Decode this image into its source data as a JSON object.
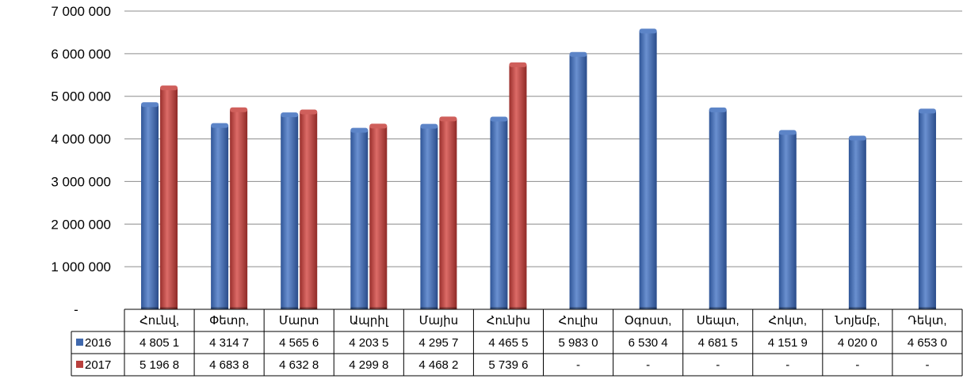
{
  "chart_data": {
    "type": "bar",
    "title": "",
    "xlabel": "",
    "ylabel": "",
    "ylim": [
      0,
      7000000
    ],
    "grid": true,
    "legend_placement": "data-table-left",
    "y_ticks": [
      {
        "value": 0,
        "label": "-"
      },
      {
        "value": 1000000,
        "label": "1 000 000"
      },
      {
        "value": 2000000,
        "label": "2 000 000"
      },
      {
        "value": 3000000,
        "label": "3 000 000"
      },
      {
        "value": 4000000,
        "label": "4 000 000"
      },
      {
        "value": 5000000,
        "label": "5 000 000"
      },
      {
        "value": 6000000,
        "label": "6 000 000"
      },
      {
        "value": 7000000,
        "label": "7 000 000"
      }
    ],
    "categories": [
      "Հունվ,",
      "Փետր,",
      "Մարտ",
      "Ապրիլ",
      "Մայիս",
      "Հունիս",
      "Հուլիս",
      "Օգոստ,",
      "Սեպտ,",
      "Հոկտ,",
      "Նոյեմբ,",
      "Դեկտ,"
    ],
    "series": [
      {
        "name": "2016",
        "color": "#3f68ad",
        "values": [
          4805100,
          4314700,
          4565600,
          4203500,
          4295700,
          4465500,
          5983000,
          6530400,
          4681500,
          4151900,
          4020000,
          4653000
        ],
        "table_labels": [
          "4 805 1",
          "4 314 7",
          "4 565 6",
          "4 203 5",
          "4 295 7",
          "4 465 5",
          "5 983 0",
          "6 530 4",
          "4 681 5",
          "4 151 9",
          "4 020 0",
          "4 653 0"
        ]
      },
      {
        "name": "2017",
        "color": "#b9403d",
        "values": [
          5196800,
          4683800,
          4632800,
          4299800,
          4468200,
          5739600,
          null,
          null,
          null,
          null,
          null,
          null
        ],
        "table_labels": [
          "5 196 8",
          "4 683 8",
          "4 632 8",
          "4 299 8",
          "4 468 2",
          "5 739 6",
          "-",
          "-",
          "-",
          "-",
          "-",
          "-"
        ]
      }
    ]
  }
}
